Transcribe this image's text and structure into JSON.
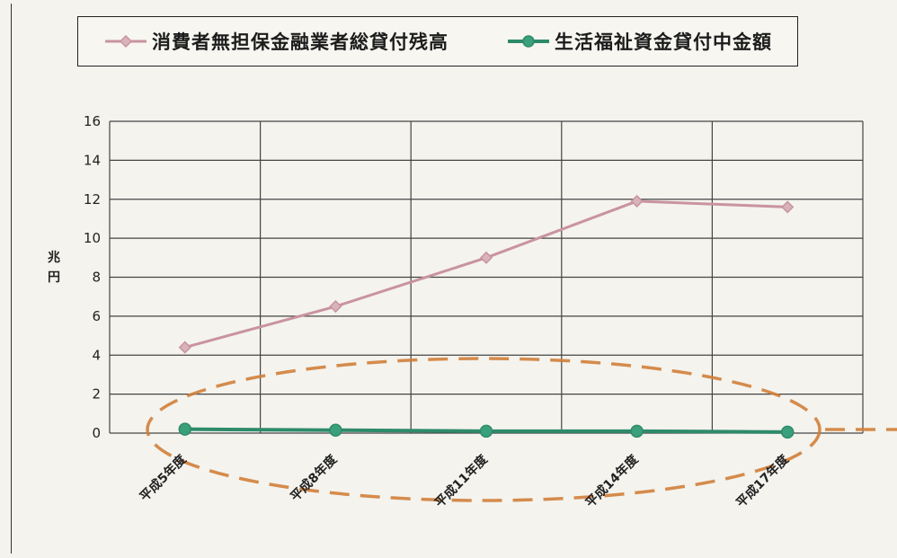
{
  "chart_data": {
    "type": "line",
    "title": "",
    "xlabel": "",
    "ylabel": "兆円",
    "categories": [
      "平成5年度",
      "平成8年度",
      "平成11年度",
      "平成14年度",
      "平成17年度"
    ],
    "ylim": [
      0,
      16
    ],
    "yticks": [
      0,
      2,
      4,
      6,
      8,
      10,
      12,
      14,
      16
    ],
    "grid": true,
    "legend_position": "top",
    "series": [
      {
        "name": "消費者無担保金融業者総貸付残高",
        "values": [
          4.4,
          6.5,
          9.0,
          11.9,
          11.6
        ],
        "color": "#c9939f",
        "marker": "diamond"
      },
      {
        "name": "生活福祉資金貸付中金額",
        "values": [
          0.2,
          0.15,
          0.1,
          0.1,
          0.05
        ],
        "color": "#2e8b6a",
        "marker": "circle"
      }
    ],
    "annotation": {
      "shape": "dashed-ellipse",
      "color": "#d2803a"
    }
  }
}
